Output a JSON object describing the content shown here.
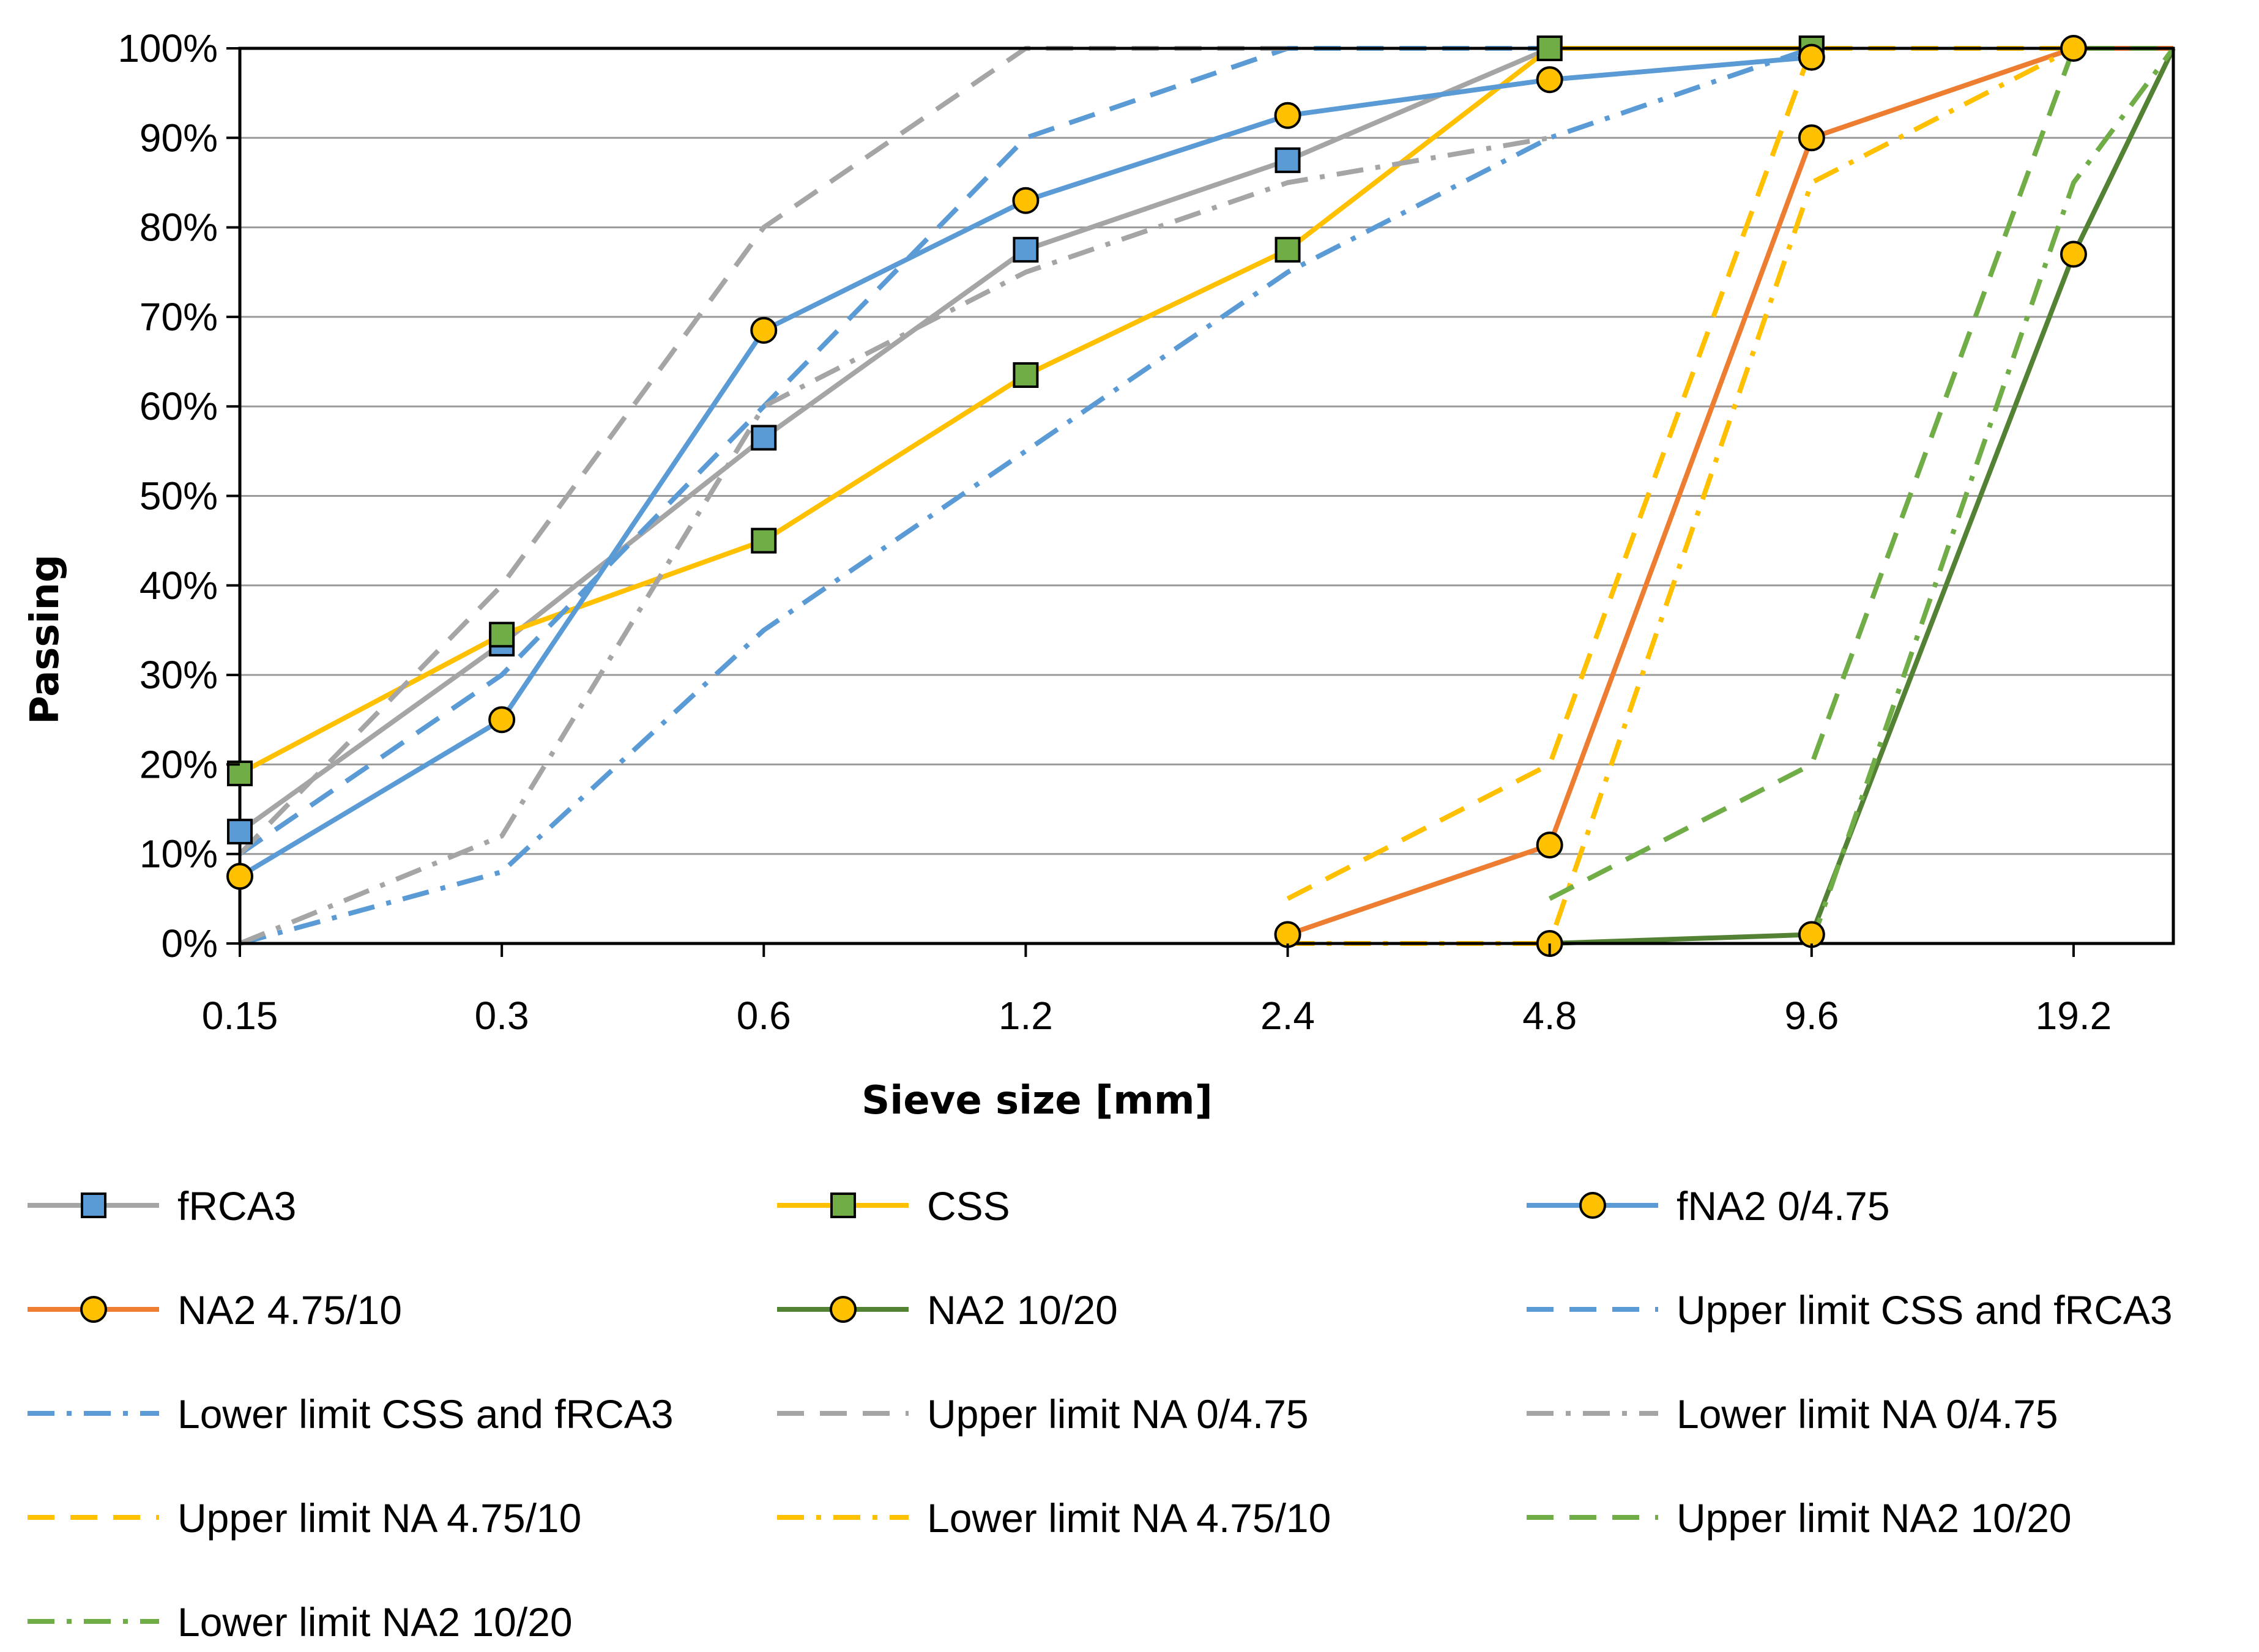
{
  "chart_data": {
    "type": "line",
    "title": "",
    "xlabel": "Sieve size [mm]",
    "ylabel": "Passing",
    "x_scale": "log2",
    "x_ticks": [
      "0.15",
      "0.3",
      "0.6",
      "1.2",
      "2.4",
      "4.8",
      "9.6",
      "19.2"
    ],
    "x_tick_values": [
      0.15,
      0.3,
      0.6,
      1.2,
      2.4,
      4.8,
      9.6,
      19.2
    ],
    "xlim": [
      0.15,
      25
    ],
    "ylim": [
      0,
      100
    ],
    "y_ticks": [
      "0%",
      "10%",
      "20%",
      "30%",
      "40%",
      "50%",
      "60%",
      "70%",
      "80%",
      "90%",
      "100%"
    ],
    "y_tick_values": [
      0,
      10,
      20,
      30,
      40,
      50,
      60,
      70,
      80,
      90,
      100
    ],
    "grid": "horizontal",
    "legend_position": "bottom",
    "series": [
      {
        "name": "fRCA3",
        "color": "#a5a5a5",
        "dash": "solid",
        "marker": "square",
        "marker_color": "#5b9bd5",
        "points": [
          [
            0.15,
            12.5
          ],
          [
            0.3,
            33.5
          ],
          [
            0.6,
            56.5
          ],
          [
            1.2,
            77.5
          ],
          [
            2.4,
            87.5
          ],
          [
            4.8,
            100
          ],
          [
            9.6,
            100
          ]
        ]
      },
      {
        "name": "CSS",
        "color": "#ffc000",
        "dash": "solid",
        "marker": "square",
        "marker_color": "#70ad47",
        "points": [
          [
            0.15,
            19
          ],
          [
            0.3,
            34.5
          ],
          [
            0.6,
            45
          ],
          [
            1.2,
            63.5
          ],
          [
            2.4,
            77.5
          ],
          [
            4.8,
            100
          ],
          [
            9.6,
            100
          ]
        ]
      },
      {
        "name": "fNA2 0/4.75",
        "color": "#5b9bd5",
        "dash": "solid",
        "marker": "circle",
        "marker_color": "#ffc000",
        "points": [
          [
            0.15,
            7.5
          ],
          [
            0.3,
            25
          ],
          [
            0.6,
            68.5
          ],
          [
            1.2,
            83
          ],
          [
            2.4,
            92.5
          ],
          [
            4.8,
            96.5
          ],
          [
            9.6,
            99
          ]
        ]
      },
      {
        "name": "NA2 4.75/10",
        "color": "#ed7d31",
        "dash": "solid",
        "marker": "circle",
        "marker_color": "#ffc000",
        "points": [
          [
            2.4,
            1
          ],
          [
            4.8,
            11
          ],
          [
            9.6,
            90
          ],
          [
            19.2,
            100
          ],
          [
            25,
            100
          ]
        ]
      },
      {
        "name": "NA2 10/20",
        "color": "#548235",
        "dash": "solid",
        "marker": "circle",
        "marker_color": "#ffc000",
        "points": [
          [
            4.8,
            0
          ],
          [
            9.6,
            1
          ],
          [
            19.2,
            77
          ],
          [
            25,
            100
          ]
        ]
      },
      {
        "name": "Upper limit CSS and fRCA3",
        "color": "#5b9bd5",
        "dash": "dash",
        "marker": "none",
        "points": [
          [
            0.15,
            10
          ],
          [
            0.3,
            30
          ],
          [
            0.6,
            60
          ],
          [
            1.2,
            90
          ],
          [
            2.4,
            100
          ],
          [
            4.8,
            100
          ]
        ]
      },
      {
        "name": "Lower limit CSS and fRCA3",
        "color": "#5b9bd5",
        "dash": "dashdot",
        "marker": "none",
        "points": [
          [
            0.15,
            0
          ],
          [
            0.3,
            8
          ],
          [
            0.6,
            35
          ],
          [
            1.2,
            55
          ],
          [
            2.4,
            75
          ],
          [
            4.8,
            90
          ],
          [
            9.6,
            100
          ]
        ]
      },
      {
        "name": "Upper limit NA 0/4.75",
        "color": "#a5a5a5",
        "dash": "dash",
        "marker": "none",
        "points": [
          [
            0.15,
            10
          ],
          [
            0.3,
            40
          ],
          [
            0.6,
            80
          ],
          [
            1.2,
            100
          ],
          [
            2.4,
            100
          ]
        ]
      },
      {
        "name": "Lower limit NA 0/4.75",
        "color": "#a5a5a5",
        "dash": "dashdot",
        "marker": "none",
        "points": [
          [
            0.15,
            0
          ],
          [
            0.3,
            12
          ],
          [
            0.6,
            60
          ],
          [
            1.2,
            75
          ],
          [
            2.4,
            85
          ],
          [
            4.8,
            90
          ]
        ]
      },
      {
        "name": "Upper limit  NA 4.75/10",
        "color": "#ffc000",
        "dash": "dash",
        "marker": "none",
        "points": [
          [
            2.4,
            5
          ],
          [
            4.8,
            20
          ],
          [
            9.6,
            100
          ],
          [
            19.2,
            100
          ]
        ]
      },
      {
        "name": "Lower limit  NA 4.75/10",
        "color": "#ffc000",
        "dash": "dashdot",
        "marker": "none",
        "points": [
          [
            2.4,
            0
          ],
          [
            4.8,
            0
          ],
          [
            9.6,
            85
          ],
          [
            19.2,
            100
          ]
        ]
      },
      {
        "name": "Upper limit  NA2 10/20",
        "color": "#70ad47",
        "dash": "dash",
        "marker": "none",
        "points": [
          [
            4.8,
            5
          ],
          [
            9.6,
            20
          ],
          [
            19.2,
            100
          ],
          [
            25,
            100
          ]
        ]
      },
      {
        "name": "Lower limit  NA2 10/20",
        "color": "#70ad47",
        "dash": "dashdot",
        "marker": "none",
        "points": [
          [
            9.6,
            0
          ],
          [
            19.2,
            85
          ],
          [
            25,
            100
          ]
        ]
      }
    ]
  }
}
